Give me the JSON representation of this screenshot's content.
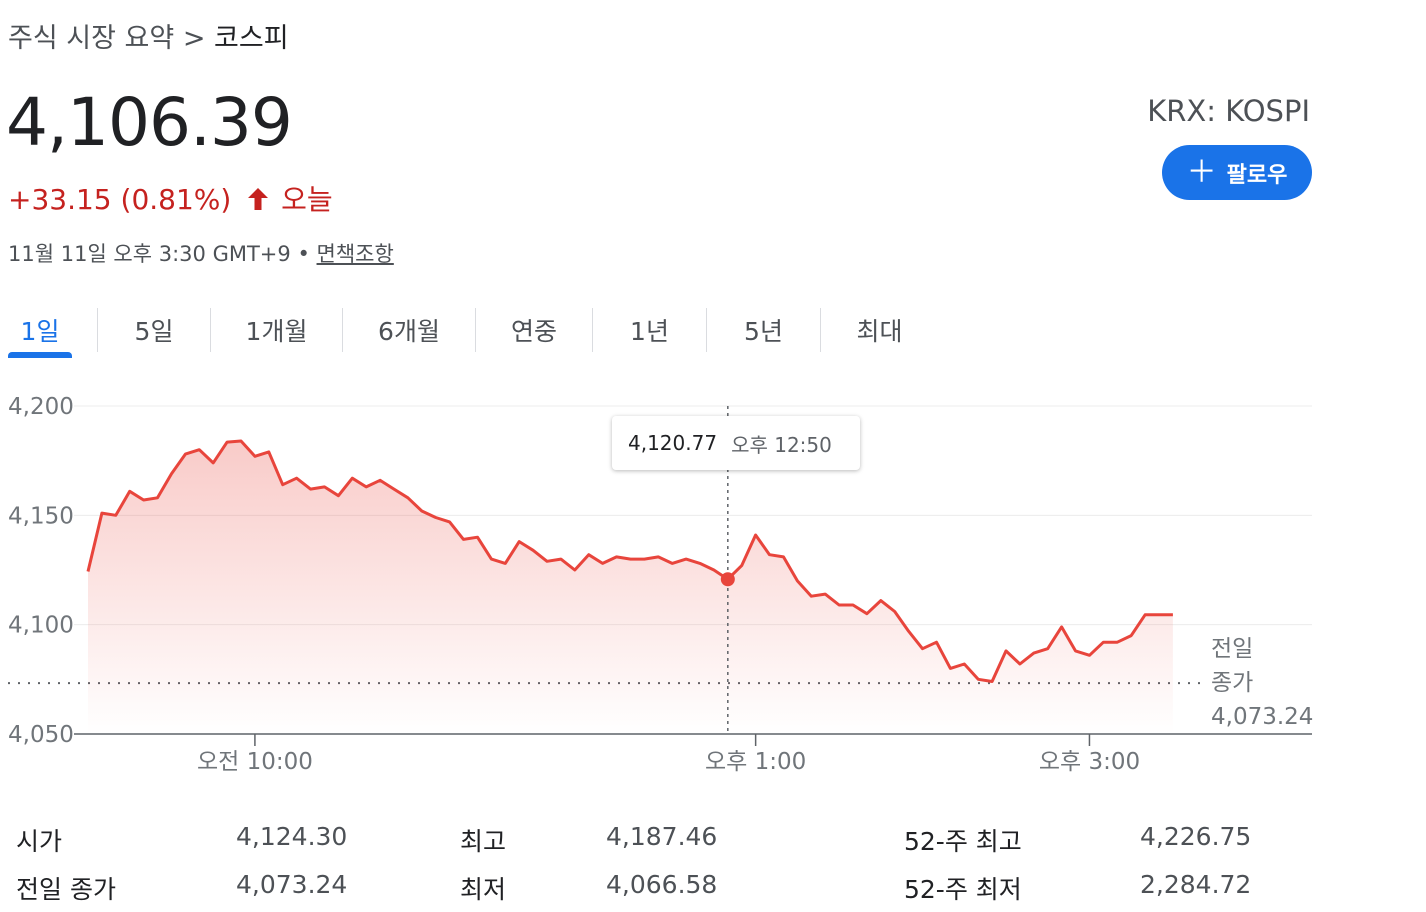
{
  "breadcrumb": {
    "parent": "주식 시장 요약",
    "separator": ">",
    "current": "코스피"
  },
  "quote": {
    "price": "4,106.39",
    "change": "+33.15 (0.81%)",
    "period": "오늘",
    "timestamp": "11월 11일 오후 3:30 GMT+9",
    "bullet": "•",
    "disclaimer": "면책조항",
    "change_color": "#c5221f"
  },
  "ticker": "KRX: KOSPI",
  "follow_button": {
    "label": "팔로우",
    "icon": "plus-icon",
    "color": "#1a73e8"
  },
  "tabs": [
    {
      "label": "1일",
      "active": true
    },
    {
      "label": "5일",
      "active": false
    },
    {
      "label": "1개월",
      "active": false
    },
    {
      "label": "6개월",
      "active": false
    },
    {
      "label": "연중",
      "active": false
    },
    {
      "label": "1년",
      "active": false
    },
    {
      "label": "5년",
      "active": false
    },
    {
      "label": "최대",
      "active": false
    }
  ],
  "tooltip": {
    "value": "4,120.77",
    "time": "오후 12:50"
  },
  "chart_data": {
    "type": "area",
    "line_color": "#e8453c",
    "y_ticks": [
      "4,200",
      "4,150",
      "4,100",
      "4,050"
    ],
    "y_tick_values": [
      4200,
      4150,
      4100,
      4050
    ],
    "ylim": [
      4050,
      4200
    ],
    "x_ticks": [
      "오전 10:00",
      "오후 1:00",
      "오후 3:00"
    ],
    "x_tick_values": [
      "10:00",
      "13:00",
      "15:00"
    ],
    "xlim": [
      "09:00",
      "16:20"
    ],
    "previous_close": {
      "label_line1": "전일",
      "label_line2": "종가",
      "value": "4,073.24",
      "numeric": 4073.24
    },
    "highlight": {
      "time": "12:50",
      "value": 4120.77
    },
    "series": [
      {
        "values": [
          [
            "09:00",
            4124.3
          ],
          [
            "09:05",
            4151
          ],
          [
            "09:10",
            4150
          ],
          [
            "09:15",
            4161
          ],
          [
            "09:20",
            4157
          ],
          [
            "09:25",
            4158
          ],
          [
            "09:30",
            4169
          ],
          [
            "09:35",
            4178
          ],
          [
            "09:40",
            4180
          ],
          [
            "09:45",
            4174
          ],
          [
            "09:50",
            4183.5
          ],
          [
            "09:55",
            4184
          ],
          [
            "10:00",
            4177
          ],
          [
            "10:05",
            4179
          ],
          [
            "10:10",
            4164
          ],
          [
            "10:15",
            4167
          ],
          [
            "10:20",
            4162
          ],
          [
            "10:25",
            4163
          ],
          [
            "10:30",
            4159
          ],
          [
            "10:35",
            4167
          ],
          [
            "10:40",
            4163
          ],
          [
            "10:45",
            4166
          ],
          [
            "10:50",
            4162
          ],
          [
            "10:55",
            4158
          ],
          [
            "11:00",
            4152
          ],
          [
            "11:05",
            4149
          ],
          [
            "11:10",
            4147
          ],
          [
            "11:15",
            4139
          ],
          [
            "11:20",
            4140
          ],
          [
            "11:25",
            4130
          ],
          [
            "11:30",
            4128
          ],
          [
            "11:35",
            4138
          ],
          [
            "11:40",
            4134
          ],
          [
            "11:45",
            4129
          ],
          [
            "11:50",
            4130
          ],
          [
            "11:55",
            4125
          ],
          [
            "12:00",
            4132
          ],
          [
            "12:05",
            4128
          ],
          [
            "12:10",
            4131
          ],
          [
            "12:15",
            4130
          ],
          [
            "12:20",
            4130
          ],
          [
            "12:25",
            4131
          ],
          [
            "12:30",
            4128
          ],
          [
            "12:35",
            4130
          ],
          [
            "12:40",
            4128
          ],
          [
            "12:45",
            4125
          ],
          [
            "12:50",
            4120.77
          ],
          [
            "12:55",
            4127
          ],
          [
            "13:00",
            4141
          ],
          [
            "13:05",
            4132
          ],
          [
            "13:10",
            4131
          ],
          [
            "13:15",
            4120
          ],
          [
            "13:20",
            4113
          ],
          [
            "13:25",
            4114
          ],
          [
            "13:30",
            4109
          ],
          [
            "13:35",
            4109
          ],
          [
            "13:40",
            4105
          ],
          [
            "13:45",
            4111
          ],
          [
            "13:50",
            4106
          ],
          [
            "13:55",
            4097
          ],
          [
            "14:00",
            4089
          ],
          [
            "14:05",
            4092
          ],
          [
            "14:10",
            4080
          ],
          [
            "14:15",
            4082
          ],
          [
            "14:20",
            4075
          ],
          [
            "14:25",
            4074
          ],
          [
            "14:30",
            4088
          ],
          [
            "14:35",
            4082
          ],
          [
            "14:40",
            4087
          ],
          [
            "14:45",
            4089
          ],
          [
            "14:50",
            4099
          ],
          [
            "14:55",
            4088
          ],
          [
            "15:00",
            4086
          ],
          [
            "15:05",
            4092
          ],
          [
            "15:10",
            4092
          ],
          [
            "15:15",
            4095
          ],
          [
            "15:20",
            4104.5
          ],
          [
            "15:25",
            4104.5
          ],
          [
            "15:30",
            4104.5
          ]
        ]
      }
    ]
  },
  "stats": [
    [
      {
        "label": "시가",
        "value": "4,124.30"
      },
      {
        "label": "최고",
        "value": "4,187.46"
      },
      {
        "label": "52-주 최고",
        "value": "4,226.75"
      }
    ],
    [
      {
        "label": "전일 종가",
        "value": "4,073.24"
      },
      {
        "label": "최저",
        "value": "4,066.58"
      },
      {
        "label": "52-주 최저",
        "value": "2,284.72"
      }
    ]
  ]
}
